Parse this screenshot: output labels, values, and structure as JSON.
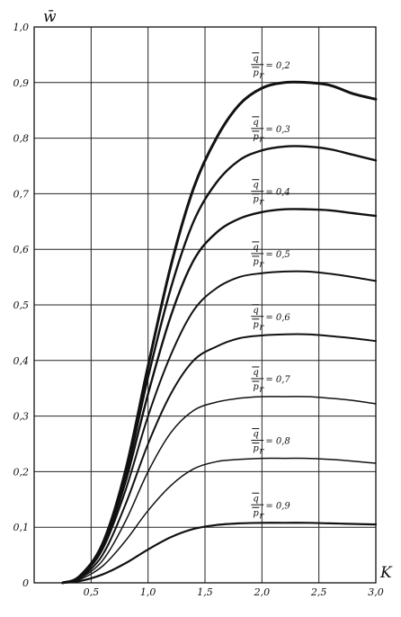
{
  "chart_data": {
    "type": "line",
    "title": "",
    "xlabel": "K",
    "ylabel": "w̄",
    "xlim": [
      0,
      3.0
    ],
    "ylim": [
      0,
      1.0
    ],
    "x_ticks": [
      {
        "value": 0.5,
        "label": "0,5"
      },
      {
        "value": 1.0,
        "label": "1,0"
      },
      {
        "value": 1.5,
        "label": "1,5"
      },
      {
        "value": 2.0,
        "label": "2,0"
      },
      {
        "value": 2.5,
        "label": "2,5"
      },
      {
        "value": 3.0,
        "label": "3,0"
      }
    ],
    "y_ticks": [
      {
        "value": 0.0,
        "label": "0"
      },
      {
        "value": 0.1,
        "label": "0,1"
      },
      {
        "value": 0.2,
        "label": "0,2"
      },
      {
        "value": 0.3,
        "label": "0,3"
      },
      {
        "value": 0.4,
        "label": "0,4"
      },
      {
        "value": 0.5,
        "label": "0,5"
      },
      {
        "value": 0.6,
        "label": "0,6"
      },
      {
        "value": 0.7,
        "label": "0,7"
      },
      {
        "value": 0.8,
        "label": "0,8"
      },
      {
        "value": 0.9,
        "label": "0,9"
      },
      {
        "value": 1.0,
        "label": "1,0"
      }
    ],
    "grid": true,
    "series": [
      {
        "name": "= 0,2",
        "x": [
          0.25,
          0.4,
          0.6,
          0.8,
          1.0,
          1.2,
          1.4,
          1.6,
          1.8,
          2.0,
          2.2,
          2.4,
          2.6,
          2.8,
          3.0
        ],
        "y": [
          0.0,
          0.012,
          0.07,
          0.2,
          0.39,
          0.57,
          0.71,
          0.8,
          0.86,
          0.89,
          0.9,
          0.9,
          0.895,
          0.88,
          0.87
        ]
      },
      {
        "name": "= 0,3",
        "x": [
          0.25,
          0.4,
          0.6,
          0.8,
          1.0,
          1.2,
          1.4,
          1.6,
          1.8,
          2.0,
          2.2,
          2.4,
          2.6,
          2.8,
          3.0
        ],
        "y": [
          0.0,
          0.012,
          0.07,
          0.19,
          0.37,
          0.53,
          0.65,
          0.72,
          0.76,
          0.778,
          0.785,
          0.785,
          0.78,
          0.77,
          0.76
        ]
      },
      {
        "name": "= 0,4",
        "x": [
          0.25,
          0.4,
          0.6,
          0.8,
          1.0,
          1.2,
          1.4,
          1.6,
          1.8,
          2.0,
          2.2,
          2.4,
          2.6,
          2.8,
          3.0
        ],
        "y": [
          0.0,
          0.011,
          0.065,
          0.18,
          0.34,
          0.48,
          0.58,
          0.63,
          0.655,
          0.667,
          0.672,
          0.672,
          0.67,
          0.665,
          0.66
        ]
      },
      {
        "name": "= 0,5",
        "x": [
          0.25,
          0.4,
          0.6,
          0.8,
          1.0,
          1.2,
          1.4,
          1.6,
          1.8,
          2.0,
          2.2,
          2.4,
          2.6,
          2.8,
          3.0
        ],
        "y": [
          0.0,
          0.01,
          0.06,
          0.165,
          0.3,
          0.41,
          0.49,
          0.53,
          0.55,
          0.557,
          0.56,
          0.56,
          0.556,
          0.55,
          0.543
        ]
      },
      {
        "name": "= 0,6",
        "x": [
          0.25,
          0.4,
          0.6,
          0.8,
          1.0,
          1.2,
          1.4,
          1.6,
          1.8,
          2.0,
          2.2,
          2.4,
          2.6,
          2.8,
          3.0
        ],
        "y": [
          0.0,
          0.009,
          0.05,
          0.14,
          0.25,
          0.34,
          0.4,
          0.425,
          0.44,
          0.445,
          0.447,
          0.447,
          0.444,
          0.44,
          0.435
        ]
      },
      {
        "name": "= 0,7",
        "x": [
          0.25,
          0.4,
          0.6,
          0.8,
          1.0,
          1.2,
          1.4,
          1.6,
          1.8,
          2.0,
          2.2,
          2.4,
          2.6,
          2.8,
          3.0
        ],
        "y": [
          0.0,
          0.008,
          0.04,
          0.11,
          0.2,
          0.27,
          0.31,
          0.325,
          0.332,
          0.335,
          0.335,
          0.335,
          0.332,
          0.328,
          0.322
        ]
      },
      {
        "name": "= 0,8",
        "x": [
          0.25,
          0.4,
          0.6,
          0.8,
          1.0,
          1.2,
          1.4,
          1.6,
          1.8,
          2.0,
          2.2,
          2.4,
          2.6,
          2.8,
          3.0
        ],
        "y": [
          0.0,
          0.006,
          0.03,
          0.075,
          0.13,
          0.175,
          0.205,
          0.218,
          0.222,
          0.224,
          0.224,
          0.224,
          0.222,
          0.219,
          0.215
        ]
      },
      {
        "name": "= 0,9",
        "x": [
          0.25,
          0.4,
          0.6,
          0.8,
          1.0,
          1.2,
          1.4,
          1.6,
          1.8,
          2.0,
          2.2,
          2.4,
          2.6,
          2.8,
          3.0
        ],
        "y": [
          0.0,
          0.003,
          0.015,
          0.035,
          0.06,
          0.082,
          0.097,
          0.104,
          0.107,
          0.108,
          0.108,
          0.108,
          0.107,
          0.106,
          0.105
        ]
      }
    ]
  },
  "annotations": [
    {
      "q": "q",
      "p": "p",
      "r": "r",
      "value": "= 0,2",
      "series": 0
    },
    {
      "q": "q",
      "p": "p",
      "r": "r",
      "value": "= 0,3",
      "series": 1
    },
    {
      "q": "q",
      "p": "p",
      "r": "r",
      "value": "= 0,4",
      "series": 2
    },
    {
      "q": "q",
      "p": "p",
      "r": "r",
      "value": "= 0,5",
      "series": 3
    },
    {
      "q": "q",
      "p": "p",
      "r": "r",
      "value": "= 0,6",
      "series": 4
    },
    {
      "q": "q",
      "p": "p",
      "r": "r",
      "value": "= 0,7",
      "series": 5
    },
    {
      "q": "q",
      "p": "p",
      "r": "r",
      "value": "= 0,8",
      "series": 6
    },
    {
      "q": "q",
      "p": "p",
      "r": "r",
      "value": "= 0,9",
      "series": 7
    }
  ]
}
